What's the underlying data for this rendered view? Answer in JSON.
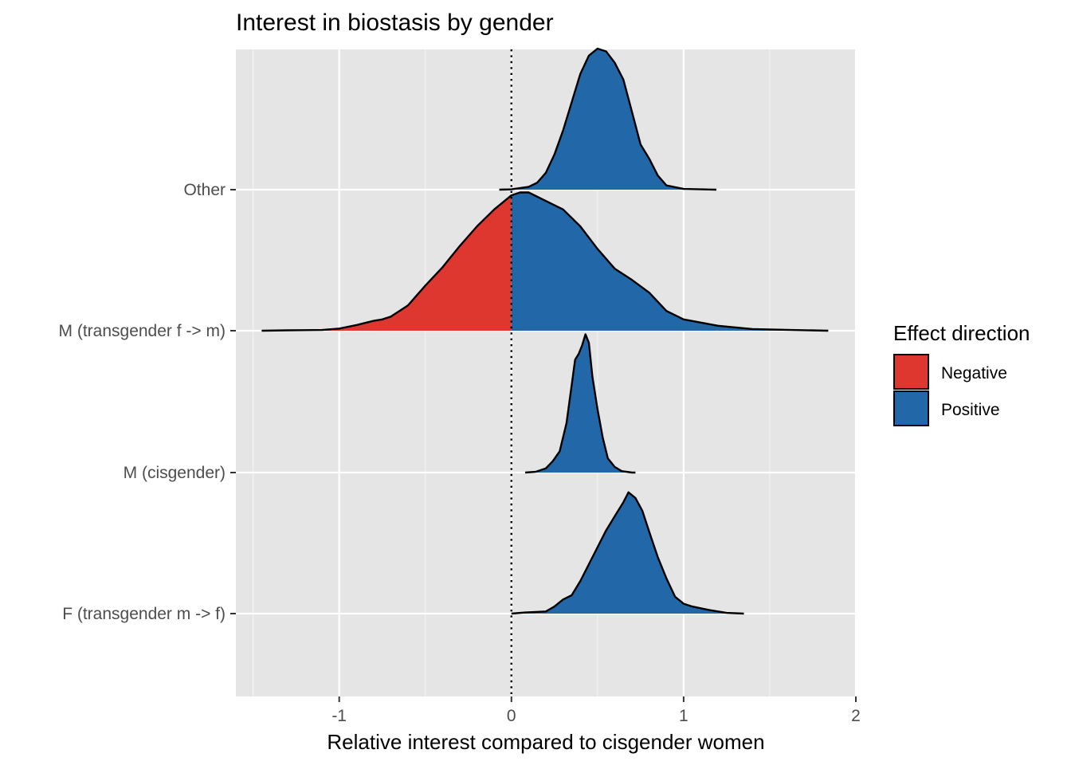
{
  "chart_data": {
    "type": "ridgeline-density",
    "title": "Interest in biostasis by gender",
    "xlabel": "Relative interest compared to cisgender women",
    "ylabel": "",
    "xlim": [
      -1.6,
      2.0
    ],
    "x_ticks": [
      "-1",
      "0",
      "1",
      "2"
    ],
    "x_tick_values": [
      -1,
      0,
      1,
      2
    ],
    "x_minor_gridlines": [
      -1.5,
      -0.5,
      0.5,
      1.5
    ],
    "reference_line": {
      "x": 0,
      "style": "dotted"
    },
    "grid": true,
    "background": "#e5e5e5",
    "legend": {
      "title": "Effect direction",
      "position": "right",
      "entries": [
        {
          "label": "Negative",
          "color": "#de3730"
        },
        {
          "label": "Positive",
          "color": "#2268a9"
        }
      ]
    },
    "categories": [
      "F (transgender m -> f)",
      "M (cisgender)",
      "M (transgender f -> m)",
      "Other"
    ],
    "series": [
      {
        "category": "F (transgender m -> f)",
        "density": [
          [
            0.0,
            0.0
          ],
          [
            0.08,
            0.008
          ],
          [
            0.2,
            0.015
          ],
          [
            0.25,
            0.05
          ],
          [
            0.3,
            0.1
          ],
          [
            0.35,
            0.13
          ],
          [
            0.4,
            0.23
          ],
          [
            0.45,
            0.35
          ],
          [
            0.5,
            0.47
          ],
          [
            0.55,
            0.59
          ],
          [
            0.6,
            0.69
          ],
          [
            0.65,
            0.79
          ],
          [
            0.68,
            0.86
          ],
          [
            0.72,
            0.82
          ],
          [
            0.76,
            0.73
          ],
          [
            0.8,
            0.58
          ],
          [
            0.85,
            0.4
          ],
          [
            0.9,
            0.25
          ],
          [
            0.95,
            0.12
          ],
          [
            1.0,
            0.07
          ],
          [
            1.05,
            0.05
          ],
          [
            1.15,
            0.025
          ],
          [
            1.25,
            0.005
          ],
          [
            1.35,
            0.0
          ]
        ]
      },
      {
        "category": "M (cisgender)",
        "density": [
          [
            0.08,
            0.0
          ],
          [
            0.14,
            0.005
          ],
          [
            0.2,
            0.03
          ],
          [
            0.24,
            0.08
          ],
          [
            0.28,
            0.15
          ],
          [
            0.32,
            0.35
          ],
          [
            0.35,
            0.62
          ],
          [
            0.37,
            0.8
          ],
          [
            0.39,
            0.84
          ],
          [
            0.41,
            0.9
          ],
          [
            0.43,
            0.98
          ],
          [
            0.45,
            0.92
          ],
          [
            0.47,
            0.68
          ],
          [
            0.5,
            0.45
          ],
          [
            0.53,
            0.25
          ],
          [
            0.56,
            0.1
          ],
          [
            0.6,
            0.04
          ],
          [
            0.64,
            0.01
          ],
          [
            0.7,
            0.0
          ],
          [
            0.72,
            0.0
          ]
        ]
      },
      {
        "category": "M (transgender f -> m)",
        "density": [
          [
            -1.45,
            0.0
          ],
          [
            -1.3,
            0.003
          ],
          [
            -1.1,
            0.005
          ],
          [
            -1.0,
            0.015
          ],
          [
            -0.9,
            0.04
          ],
          [
            -0.8,
            0.07
          ],
          [
            -0.75,
            0.08
          ],
          [
            -0.7,
            0.1
          ],
          [
            -0.6,
            0.18
          ],
          [
            -0.5,
            0.32
          ],
          [
            -0.4,
            0.45
          ],
          [
            -0.3,
            0.6
          ],
          [
            -0.2,
            0.74
          ],
          [
            -0.1,
            0.86
          ],
          [
            0.0,
            0.96
          ],
          [
            0.05,
            0.98
          ],
          [
            0.1,
            0.98
          ],
          [
            0.2,
            0.92
          ],
          [
            0.3,
            0.86
          ],
          [
            0.4,
            0.74
          ],
          [
            0.5,
            0.58
          ],
          [
            0.6,
            0.44
          ],
          [
            0.7,
            0.36
          ],
          [
            0.8,
            0.27
          ],
          [
            0.9,
            0.14
          ],
          [
            1.0,
            0.08
          ],
          [
            1.2,
            0.035
          ],
          [
            1.4,
            0.012
          ],
          [
            1.6,
            0.006
          ],
          [
            1.84,
            0.0
          ]
        ]
      },
      {
        "category": "Other",
        "density": [
          [
            -0.07,
            0.0
          ],
          [
            0.0,
            0.002
          ],
          [
            0.1,
            0.02
          ],
          [
            0.15,
            0.05
          ],
          [
            0.2,
            0.12
          ],
          [
            0.25,
            0.25
          ],
          [
            0.3,
            0.42
          ],
          [
            0.35,
            0.62
          ],
          [
            0.4,
            0.82
          ],
          [
            0.45,
            0.95
          ],
          [
            0.5,
            1.0
          ],
          [
            0.55,
            0.98
          ],
          [
            0.6,
            0.9
          ],
          [
            0.65,
            0.78
          ],
          [
            0.7,
            0.55
          ],
          [
            0.75,
            0.32
          ],
          [
            0.8,
            0.22
          ],
          [
            0.85,
            0.1
          ],
          [
            0.9,
            0.03
          ],
          [
            1.0,
            0.005
          ],
          [
            1.1,
            0.002
          ],
          [
            1.19,
            0.0
          ]
        ]
      }
    ]
  }
}
